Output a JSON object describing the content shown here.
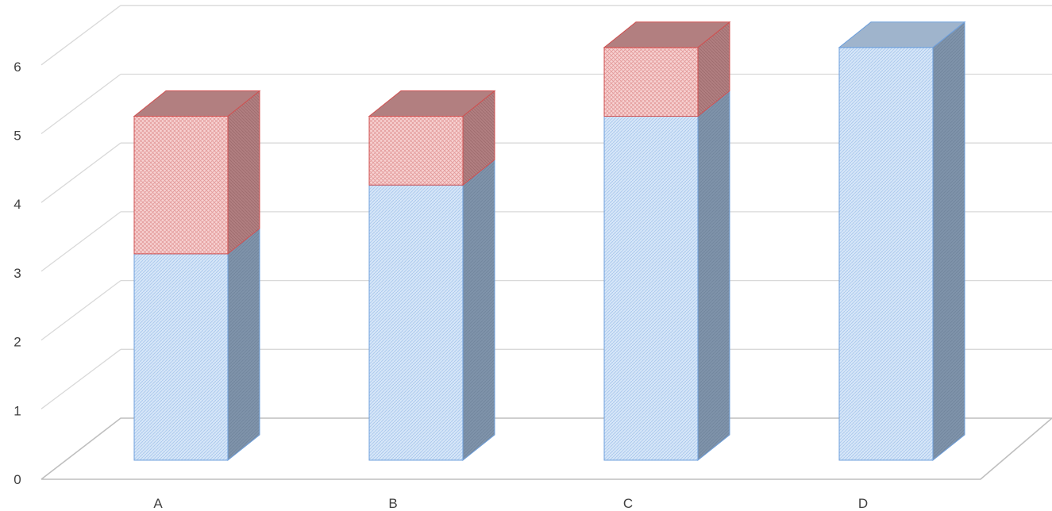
{
  "chart_data": {
    "type": "bar",
    "stacked": true,
    "three_d": true,
    "categories": [
      "A",
      "B",
      "C",
      "D"
    ],
    "series": [
      {
        "values": [
          3,
          4,
          5,
          6
        ],
        "color": "#cfe0f5",
        "pattern": "diagonal-hatch"
      },
      {
        "values": [
          2,
          1,
          1,
          0
        ],
        "color": "#f4c7c7",
        "pattern": "cross-hatch"
      }
    ],
    "y_ticks": [
      "0",
      "1",
      "2",
      "3",
      "4",
      "5",
      "6"
    ],
    "ylim": [
      0,
      6
    ],
    "grid": true,
    "legend": "none",
    "colors": {
      "blue_front": "#cfe0f5",
      "blue_side": "#7f93aa",
      "blue_stroke": "#6fa0dc",
      "red_front": "#f4c7c7",
      "red_side": "#b07e80",
      "red_stroke": "#d05050"
    }
  }
}
